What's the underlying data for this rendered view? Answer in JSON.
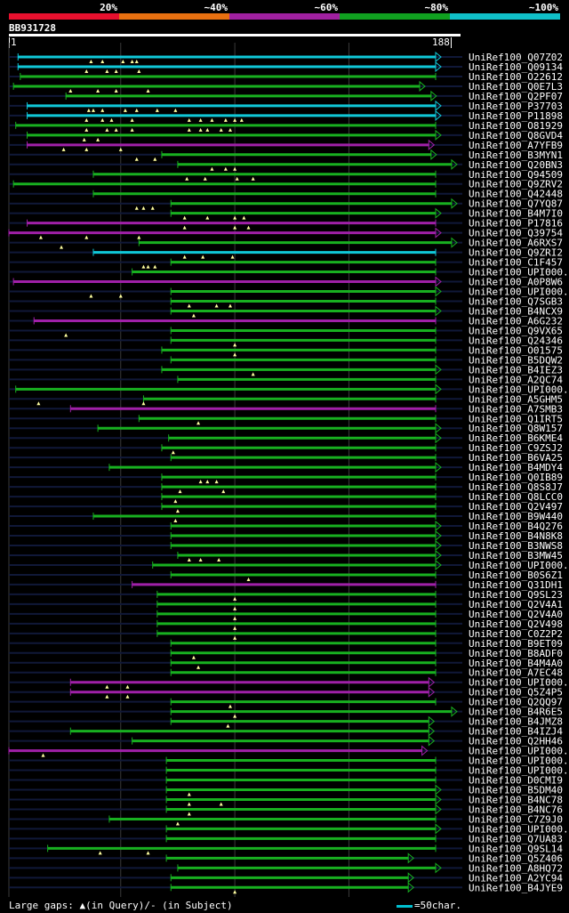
{
  "legend": {
    "segments": [
      {
        "label": "20%",
        "color": "#e8102e"
      },
      {
        "label": "~40%",
        "color": "#e87010"
      },
      {
        "label": "~60%",
        "color": "#a020a0"
      },
      {
        "label": "~80%",
        "color": "#10a020"
      },
      {
        "label": "~100%",
        "color": "#10c0c8"
      }
    ]
  },
  "query": {
    "id": "BB931728",
    "start": "1",
    "end": "188",
    "length": 188
  },
  "footer": {
    "gaps_text": "Large gaps: ▲(in Query)/- (in Subject)",
    "scale_text": "=50char."
  },
  "chart_data": {
    "type": "alignment-overview",
    "query_length": 188,
    "hits": [
      {
        "name": "UniRef100_Q07Z02",
        "start": 5,
        "end": 188,
        "color": "cyan",
        "arrow": true,
        "marks": [
          37,
          42,
          51,
          55,
          57
        ]
      },
      {
        "name": "UniRef100_Q09134",
        "start": 5,
        "end": 188,
        "color": "cyan",
        "arrow": true,
        "marks": [
          35,
          44,
          48,
          58
        ]
      },
      {
        "name": "UniRef100_O22612",
        "start": 6,
        "end": 188,
        "color": "green",
        "arrow": false,
        "marks": []
      },
      {
        "name": "UniRef100_Q0E7L3",
        "start": 3,
        "end": 181,
        "color": "green",
        "arrow": true,
        "marks": [
          28,
          40,
          48,
          62
        ]
      },
      {
        "name": "UniRef100_Q2PF07",
        "start": 26,
        "end": 186,
        "color": "green",
        "arrow": true,
        "marks": []
      },
      {
        "name": "UniRef100_P37703",
        "start": 9,
        "end": 188,
        "color": "cyan",
        "arrow": true,
        "marks": [
          36,
          38,
          42,
          52,
          57,
          66,
          74
        ]
      },
      {
        "name": "UniRef100_P11898",
        "start": 9,
        "end": 188,
        "color": "cyan",
        "arrow": true,
        "marks": [
          35,
          42,
          46,
          55,
          80,
          85,
          90,
          96,
          100,
          103
        ]
      },
      {
        "name": "UniRef100_O81929",
        "start": 4,
        "end": 188,
        "color": "green",
        "arrow": false,
        "marks": [
          35,
          44,
          48,
          55,
          80,
          85,
          88,
          94,
          98
        ]
      },
      {
        "name": "UniRef100_Q8GVD4",
        "start": 9,
        "end": 188,
        "color": "green",
        "arrow": true,
        "marks": [
          34,
          40
        ]
      },
      {
        "name": "UniRef100_A7YFB9",
        "start": 9,
        "end": 185,
        "color": "magenta",
        "arrow": true,
        "marks": [
          25,
          35,
          50
        ]
      },
      {
        "name": "UniRef100_B3MYN1",
        "start": 68,
        "end": 186,
        "color": "green",
        "arrow": true,
        "marks": [
          57,
          65
        ]
      },
      {
        "name": "UniRef100_Q20BN3",
        "start": 75,
        "end": 195,
        "color": "green",
        "arrow": true,
        "marks": [
          90,
          96,
          100
        ]
      },
      {
        "name": "UniRef100_Q94509",
        "start": 38,
        "end": 188,
        "color": "green",
        "arrow": false,
        "marks": [
          79,
          87,
          101,
          108
        ]
      },
      {
        "name": "UniRef100_Q9ZRV2",
        "start": 3,
        "end": 188,
        "color": "green",
        "arrow": false,
        "marks": []
      },
      {
        "name": "UniRef100_Q42448",
        "start": 38,
        "end": 188,
        "color": "green",
        "arrow": false,
        "marks": []
      },
      {
        "name": "UniRef100_Q7YQ87",
        "start": 72,
        "end": 195,
        "color": "green",
        "arrow": true,
        "marks": [
          57,
          60,
          64
        ]
      },
      {
        "name": "UniRef100_B4M7I0",
        "start": 72,
        "end": 188,
        "color": "green",
        "arrow": true,
        "marks": [
          78,
          88,
          100,
          104
        ]
      },
      {
        "name": "UniRef100_P17816",
        "start": 9,
        "end": 188,
        "color": "magenta",
        "arrow": false,
        "marks": [
          78,
          100,
          106
        ]
      },
      {
        "name": "UniRef100_Q39754",
        "start": 1,
        "end": 188,
        "color": "magenta",
        "arrow": true,
        "marks": [
          15,
          35,
          58
        ]
      },
      {
        "name": "UniRef100_A6RXS7",
        "start": 58,
        "end": 195,
        "color": "green",
        "arrow": true,
        "marks": [
          24
        ]
      },
      {
        "name": "UniRef100_Q9ZRI2",
        "start": 38,
        "end": 188,
        "color": "cyan",
        "arrow": false,
        "marks": [
          78,
          86,
          99
        ]
      },
      {
        "name": "UniRef100_C1F457",
        "start": 72,
        "end": 188,
        "color": "green",
        "arrow": false,
        "marks": [
          62,
          65,
          60
        ]
      },
      {
        "name": "UniRef100_UPI000...",
        "start": 55,
        "end": 188,
        "color": "green",
        "arrow": false,
        "marks": []
      },
      {
        "name": "UniRef100_A0P8W6",
        "start": 3,
        "end": 188,
        "color": "magenta",
        "arrow": true,
        "marks": []
      },
      {
        "name": "UniRef100_UPI000...",
        "start": 72,
        "end": 188,
        "color": "green",
        "arrow": true,
        "marks": [
          37,
          50
        ]
      },
      {
        "name": "UniRef100_Q7SGB3",
        "start": 72,
        "end": 188,
        "color": "green",
        "arrow": false,
        "marks": [
          80,
          92,
          98
        ]
      },
      {
        "name": "UniRef100_B4NCX9",
        "start": 72,
        "end": 188,
        "color": "green",
        "arrow": true,
        "marks": [
          82
        ]
      },
      {
        "name": "UniRef100_A6G232",
        "start": 12,
        "end": 188,
        "color": "magenta",
        "arrow": false,
        "marks": []
      },
      {
        "name": "UniRef100_Q9VX65",
        "start": 72,
        "end": 188,
        "color": "green",
        "arrow": false,
        "marks": [
          26
        ]
      },
      {
        "name": "UniRef100_Q24346",
        "start": 72,
        "end": 188,
        "color": "green",
        "arrow": false,
        "marks": [
          100
        ]
      },
      {
        "name": "UniRef100_O01575",
        "start": 68,
        "end": 188,
        "color": "green",
        "arrow": false,
        "marks": [
          100
        ]
      },
      {
        "name": "UniRef100_B5DQW2",
        "start": 72,
        "end": 188,
        "color": "green",
        "arrow": false,
        "marks": []
      },
      {
        "name": "UniRef100_B4IEZ3",
        "start": 68,
        "end": 188,
        "color": "green",
        "arrow": true,
        "marks": [
          108
        ]
      },
      {
        "name": "UniRef100_A2QC74",
        "start": 75,
        "end": 188,
        "color": "green",
        "arrow": false,
        "marks": []
      },
      {
        "name": "UniRef100_UPI000...",
        "start": 4,
        "end": 188,
        "color": "green",
        "arrow": true,
        "marks": []
      },
      {
        "name": "UniRef100_A5GHM5",
        "start": 60,
        "end": 188,
        "color": "green",
        "arrow": false,
        "marks": [
          14,
          60
        ]
      },
      {
        "name": "UniRef100_A7SMB3",
        "start": 28,
        "end": 188,
        "color": "magenta",
        "arrow": false,
        "marks": []
      },
      {
        "name": "UniRef100_Q1IRT5",
        "start": 58,
        "end": 188,
        "color": "green",
        "arrow": false,
        "marks": [
          84
        ]
      },
      {
        "name": "UniRef100_Q8W157",
        "start": 40,
        "end": 188,
        "color": "green",
        "arrow": true,
        "marks": []
      },
      {
        "name": "UniRef100_B6KME4",
        "start": 71,
        "end": 188,
        "color": "green",
        "arrow": true,
        "marks": []
      },
      {
        "name": "UniRef100_C9ZSJ2",
        "start": 68,
        "end": 188,
        "color": "green",
        "arrow": false,
        "marks": [
          73
        ]
      },
      {
        "name": "UniRef100_B6VA25",
        "start": 72,
        "end": 188,
        "color": "green",
        "arrow": false,
        "marks": []
      },
      {
        "name": "UniRef100_B4MDY4",
        "start": 45,
        "end": 188,
        "color": "green",
        "arrow": true,
        "marks": []
      },
      {
        "name": "UniRef100_Q0IB89",
        "start": 68,
        "end": 188,
        "color": "green",
        "arrow": false,
        "marks": [
          85,
          88,
          92
        ]
      },
      {
        "name": "UniRef100_Q8S8J7",
        "start": 68,
        "end": 188,
        "color": "green",
        "arrow": false,
        "marks": [
          76,
          95
        ]
      },
      {
        "name": "UniRef100_Q8LCC0",
        "start": 68,
        "end": 188,
        "color": "green",
        "arrow": false,
        "marks": [
          74
        ]
      },
      {
        "name": "UniRef100_Q2V497",
        "start": 68,
        "end": 188,
        "color": "green",
        "arrow": false,
        "marks": [
          75
        ]
      },
      {
        "name": "UniRef100_B9W440",
        "start": 38,
        "end": 188,
        "color": "green",
        "arrow": false,
        "marks": [
          74
        ]
      },
      {
        "name": "UniRef100_B4Q276",
        "start": 72,
        "end": 188,
        "color": "green",
        "arrow": true,
        "marks": []
      },
      {
        "name": "UniRef100_B4N8K8",
        "start": 72,
        "end": 188,
        "color": "green",
        "arrow": true,
        "marks": []
      },
      {
        "name": "UniRef100_B3NWS8",
        "start": 72,
        "end": 188,
        "color": "green",
        "arrow": true,
        "marks": []
      },
      {
        "name": "UniRef100_B3MW45",
        "start": 75,
        "end": 188,
        "color": "green",
        "arrow": true,
        "marks": [
          80,
          85,
          93
        ]
      },
      {
        "name": "UniRef100_UPI000...",
        "start": 64,
        "end": 188,
        "color": "green",
        "arrow": true,
        "marks": []
      },
      {
        "name": "UniRef100_B0S6Z1",
        "start": 72,
        "end": 188,
        "color": "green",
        "arrow": false,
        "marks": [
          106
        ]
      },
      {
        "name": "UniRef100_Q31DH1",
        "start": 55,
        "end": 188,
        "color": "magenta",
        "arrow": false,
        "marks": []
      },
      {
        "name": "UniRef100_Q9SL23",
        "start": 66,
        "end": 188,
        "color": "green",
        "arrow": false,
        "marks": [
          100
        ]
      },
      {
        "name": "UniRef100_Q2V4A1",
        "start": 66,
        "end": 188,
        "color": "green",
        "arrow": false,
        "marks": [
          100
        ]
      },
      {
        "name": "UniRef100_Q2V4A0",
        "start": 66,
        "end": 188,
        "color": "green",
        "arrow": false,
        "marks": [
          100
        ]
      },
      {
        "name": "UniRef100_Q2V498",
        "start": 66,
        "end": 188,
        "color": "green",
        "arrow": false,
        "marks": [
          100
        ]
      },
      {
        "name": "UniRef100_C0Z2P2",
        "start": 66,
        "end": 188,
        "color": "green",
        "arrow": false,
        "marks": [
          100
        ]
      },
      {
        "name": "UniRef100_B9ET09",
        "start": 72,
        "end": 188,
        "color": "green",
        "arrow": false,
        "marks": []
      },
      {
        "name": "UniRef100_B8ADF0",
        "start": 72,
        "end": 188,
        "color": "green",
        "arrow": false,
        "marks": [
          82
        ]
      },
      {
        "name": "UniRef100_B4M4A0",
        "start": 72,
        "end": 188,
        "color": "green",
        "arrow": false,
        "marks": [
          84
        ]
      },
      {
        "name": "UniRef100_A7EC48",
        "start": 72,
        "end": 188,
        "color": "green",
        "arrow": false,
        "marks": []
      },
      {
        "name": "UniRef100_UPI000...",
        "start": 28,
        "end": 185,
        "color": "magenta",
        "arrow": true,
        "marks": [
          44,
          53
        ]
      },
      {
        "name": "UniRef100_Q5Z4P5",
        "start": 28,
        "end": 185,
        "color": "magenta",
        "arrow": true,
        "marks": [
          44,
          53
        ]
      },
      {
        "name": "UniRef100_Q2QQ97",
        "start": 72,
        "end": 188,
        "color": "green",
        "arrow": false,
        "marks": [
          98
        ]
      },
      {
        "name": "UniRef100_B4R6E5",
        "start": 72,
        "end": 195,
        "color": "green",
        "arrow": true,
        "marks": [
          100
        ]
      },
      {
        "name": "UniRef100_B4JMZ8",
        "start": 72,
        "end": 185,
        "color": "green",
        "arrow": true,
        "marks": [
          97
        ]
      },
      {
        "name": "UniRef100_B4IZJ4",
        "start": 28,
        "end": 185,
        "color": "green",
        "arrow": true,
        "marks": []
      },
      {
        "name": "UniRef100_Q2HH46",
        "start": 55,
        "end": 185,
        "color": "green",
        "arrow": true,
        "marks": []
      },
      {
        "name": "UniRef100_UPI000...",
        "start": 1,
        "end": 182,
        "color": "magenta",
        "arrow": true,
        "marks": [
          16
        ]
      },
      {
        "name": "UniRef100_UPI000...",
        "start": 70,
        "end": 188,
        "color": "green",
        "arrow": false,
        "marks": []
      },
      {
        "name": "UniRef100_UPI000...",
        "start": 70,
        "end": 188,
        "color": "green",
        "arrow": false,
        "marks": []
      },
      {
        "name": "UniRef100_D0CMI9",
        "start": 70,
        "end": 188,
        "color": "green",
        "arrow": false,
        "marks": []
      },
      {
        "name": "UniRef100_B5DM40",
        "start": 70,
        "end": 188,
        "color": "green",
        "arrow": true,
        "marks": [
          80
        ]
      },
      {
        "name": "UniRef100_B4NC78",
        "start": 70,
        "end": 188,
        "color": "green",
        "arrow": true,
        "marks": [
          80,
          94
        ]
      },
      {
        "name": "UniRef100_B4NC76",
        "start": 70,
        "end": 188,
        "color": "green",
        "arrow": true,
        "marks": [
          80
        ]
      },
      {
        "name": "UniRef100_C7Z9J0",
        "start": 45,
        "end": 188,
        "color": "green",
        "arrow": false,
        "marks": [
          75
        ]
      },
      {
        "name": "UniRef100_UPI000...",
        "start": 70,
        "end": 188,
        "color": "green",
        "arrow": true,
        "marks": []
      },
      {
        "name": "UniRef100_Q7UA83",
        "start": 70,
        "end": 188,
        "color": "green",
        "arrow": false,
        "marks": []
      },
      {
        "name": "UniRef100_Q9SL14",
        "start": 18,
        "end": 188,
        "color": "green",
        "arrow": false,
        "marks": [
          41,
          62
        ]
      },
      {
        "name": "UniRef100_Q5Z406",
        "start": 70,
        "end": 176,
        "color": "green",
        "arrow": true,
        "marks": []
      },
      {
        "name": "UniRef100_A8HQ72",
        "start": 75,
        "end": 188,
        "color": "green",
        "arrow": true,
        "marks": []
      },
      {
        "name": "UniRef100_A2YC94",
        "start": 72,
        "end": 176,
        "color": "green",
        "arrow": true,
        "marks": []
      },
      {
        "name": "UniRef100_B4JYE9",
        "start": 72,
        "end": 176,
        "color": "green",
        "arrow": true,
        "marks": [
          100
        ]
      }
    ]
  }
}
